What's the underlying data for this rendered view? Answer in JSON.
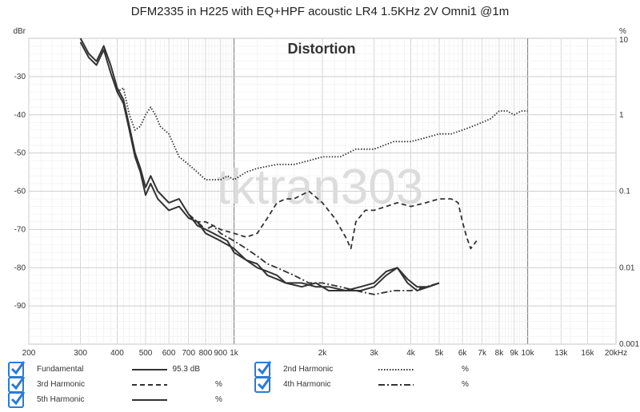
{
  "chart_data": {
    "type": "line",
    "title": "DFM2335 in H225 with EQ+HPF acoustic LR4 1.5KHz 2V Omni1 @1m",
    "subtitle": "Distortion",
    "watermark": "tktran303",
    "x_scale": "log",
    "xlim": [
      200,
      20000
    ],
    "x_tick_labels": [
      "200",
      "300",
      "400",
      "500",
      "600",
      "700",
      "800",
      "900",
      "1k",
      "2k",
      "3k",
      "4k",
      "5k",
      "6k",
      "7k",
      "8k",
      "9k",
      "10k",
      "13k",
      "16k",
      "20kHz"
    ],
    "x_tick_values": [
      200,
      300,
      400,
      500,
      600,
      700,
      800,
      900,
      1000,
      2000,
      3000,
      4000,
      5000,
      6000,
      7000,
      8000,
      9000,
      10000,
      13000,
      16000,
      20000
    ],
    "y_left_label": "dBr",
    "ylim_left": [
      -100,
      -20
    ],
    "y_left_ticks": [
      -30,
      -40,
      -50,
      -60,
      -70,
      -80,
      -90
    ],
    "y_right_label": "%",
    "y_right_scale": "log",
    "y_right_ticks": [
      "10",
      "1",
      "0.1",
      "0.01",
      "0.001"
    ],
    "grid": true,
    "series": [
      {
        "name": "Fundamental",
        "style": "solid",
        "value_text": "95.3 dB",
        "unit": "",
        "points": [
          [
            300,
            -20
          ],
          [
            320,
            -24
          ],
          [
            340,
            -26
          ],
          [
            360,
            -22
          ],
          [
            380,
            -27
          ],
          [
            400,
            -33
          ],
          [
            420,
            -36
          ],
          [
            440,
            -43
          ],
          [
            460,
            -50
          ],
          [
            480,
            -54
          ],
          [
            500,
            -59
          ],
          [
            520,
            -56
          ],
          [
            550,
            -60
          ],
          [
            600,
            -63
          ],
          [
            650,
            -62
          ],
          [
            700,
            -66
          ],
          [
            750,
            -69
          ],
          [
            800,
            -70
          ],
          [
            850,
            -71
          ],
          [
            900,
            -72
          ],
          [
            950,
            -73
          ],
          [
            1000,
            -76
          ],
          [
            1100,
            -78
          ],
          [
            1200,
            -80
          ],
          [
            1300,
            -81
          ],
          [
            1400,
            -82
          ],
          [
            1500,
            -84
          ],
          [
            1700,
            -85
          ],
          [
            1900,
            -84
          ],
          [
            2100,
            -86
          ],
          [
            2400,
            -86
          ],
          [
            2700,
            -85
          ],
          [
            3000,
            -84
          ],
          [
            3300,
            -81
          ],
          [
            3600,
            -80
          ],
          [
            3900,
            -84
          ],
          [
            4200,
            -86
          ],
          [
            4600,
            -85
          ],
          [
            5000,
            -84
          ]
        ]
      },
      {
        "name": "2nd Harmonic",
        "style": "dotted",
        "value_text": "",
        "unit": "%",
        "points": [
          [
            400,
            -34
          ],
          [
            420,
            -33
          ],
          [
            440,
            -40
          ],
          [
            460,
            -44
          ],
          [
            480,
            -43
          ],
          [
            500,
            -40
          ],
          [
            520,
            -38
          ],
          [
            540,
            -40
          ],
          [
            560,
            -43
          ],
          [
            600,
            -45
          ],
          [
            650,
            -51
          ],
          [
            700,
            -53
          ],
          [
            750,
            -55
          ],
          [
            800,
            -57
          ],
          [
            850,
            -57
          ],
          [
            900,
            -57
          ],
          [
            950,
            -56
          ],
          [
            1000,
            -57
          ],
          [
            1100,
            -55
          ],
          [
            1200,
            -54
          ],
          [
            1400,
            -53
          ],
          [
            1600,
            -53
          ],
          [
            1800,
            -52
          ],
          [
            2000,
            -51
          ],
          [
            2300,
            -51
          ],
          [
            2600,
            -49
          ],
          [
            3000,
            -49
          ],
          [
            3500,
            -47
          ],
          [
            4000,
            -47
          ],
          [
            4500,
            -46
          ],
          [
            5000,
            -45
          ],
          [
            5500,
            -45
          ],
          [
            6000,
            -44
          ],
          [
            6500,
            -43
          ],
          [
            7000,
            -42
          ],
          [
            7500,
            -41
          ],
          [
            8000,
            -39
          ],
          [
            8500,
            -39
          ],
          [
            9000,
            -40
          ],
          [
            9500,
            -39
          ],
          [
            10000,
            -39
          ]
        ]
      },
      {
        "name": "3rd Harmonic",
        "style": "dashed",
        "value_text": "",
        "unit": "%",
        "points": [
          [
            700,
            -67
          ],
          [
            750,
            -68
          ],
          [
            800,
            -68
          ],
          [
            850,
            -69
          ],
          [
            900,
            -70
          ],
          [
            1000,
            -71
          ],
          [
            1100,
            -72
          ],
          [
            1200,
            -71
          ],
          [
            1300,
            -67
          ],
          [
            1400,
            -63
          ],
          [
            1500,
            -62
          ],
          [
            1600,
            -62
          ],
          [
            1800,
            -60
          ],
          [
            2000,
            -63
          ],
          [
            2200,
            -67
          ],
          [
            2400,
            -72
          ],
          [
            2500,
            -75
          ],
          [
            2600,
            -68
          ],
          [
            2800,
            -65
          ],
          [
            3000,
            -65
          ],
          [
            3300,
            -64
          ],
          [
            3600,
            -63
          ],
          [
            4000,
            -64
          ],
          [
            4500,
            -63
          ],
          [
            5000,
            -62
          ],
          [
            5500,
            -62
          ],
          [
            5800,
            -63
          ],
          [
            6000,
            -68
          ],
          [
            6200,
            -72
          ],
          [
            6400,
            -75
          ],
          [
            6700,
            -73
          ]
        ]
      },
      {
        "name": "4th Harmonic",
        "style": "dashdot",
        "value_text": "",
        "unit": "%",
        "points": [
          [
            700,
            -66
          ],
          [
            750,
            -68
          ],
          [
            800,
            -70
          ],
          [
            850,
            -69
          ],
          [
            900,
            -71
          ],
          [
            1000,
            -73
          ],
          [
            1100,
            -75
          ],
          [
            1200,
            -77
          ],
          [
            1300,
            -79
          ],
          [
            1400,
            -80
          ],
          [
            1600,
            -82
          ],
          [
            1800,
            -84
          ],
          [
            2000,
            -84
          ],
          [
            2300,
            -85
          ],
          [
            2600,
            -86
          ],
          [
            3000,
            -87
          ],
          [
            3500,
            -86
          ],
          [
            4000,
            -86
          ],
          [
            4500,
            -85
          ],
          [
            5000,
            -84
          ]
        ]
      },
      {
        "name": "5th Harmonic",
        "style": "solid",
        "value_text": "",
        "unit": "%",
        "points": [
          [
            300,
            -21
          ],
          [
            320,
            -25
          ],
          [
            340,
            -27
          ],
          [
            360,
            -23
          ],
          [
            380,
            -29
          ],
          [
            400,
            -34
          ],
          [
            420,
            -37
          ],
          [
            440,
            -44
          ],
          [
            460,
            -51
          ],
          [
            480,
            -55
          ],
          [
            500,
            -61
          ],
          [
            520,
            -58
          ],
          [
            550,
            -62
          ],
          [
            600,
            -65
          ],
          [
            650,
            -64
          ],
          [
            700,
            -67
          ],
          [
            750,
            -68
          ],
          [
            800,
            -71
          ],
          [
            850,
            -72
          ],
          [
            900,
            -73
          ],
          [
            1000,
            -75
          ],
          [
            1100,
            -78
          ],
          [
            1200,
            -79
          ],
          [
            1300,
            -82
          ],
          [
            1400,
            -83
          ],
          [
            1500,
            -84
          ],
          [
            1700,
            -84
          ],
          [
            1900,
            -85
          ],
          [
            2100,
            -85
          ],
          [
            2400,
            -86
          ],
          [
            2700,
            -86
          ],
          [
            3000,
            -85
          ],
          [
            3300,
            -82
          ],
          [
            3600,
            -80
          ],
          [
            3900,
            -83
          ],
          [
            4200,
            -85
          ],
          [
            4600,
            -85
          ],
          [
            5000,
            -84
          ]
        ]
      }
    ]
  },
  "legend": [
    {
      "name": "Fundamental",
      "value": "95.3 dB",
      "unit": "",
      "checked": true
    },
    {
      "name": "2nd Harmonic",
      "value": "",
      "unit": "%",
      "checked": true
    },
    {
      "name": "3rd Harmonic",
      "value": "",
      "unit": "%",
      "checked": true
    },
    {
      "name": "4th Harmonic",
      "value": "",
      "unit": "%",
      "checked": true
    },
    {
      "name": "5th Harmonic",
      "value": "",
      "unit": "%",
      "checked": true
    }
  ],
  "colors": {
    "line": "#333333",
    "grid": "#cfcfcf",
    "check": "#2a7bd6",
    "watermark": "#d6d6d6"
  }
}
